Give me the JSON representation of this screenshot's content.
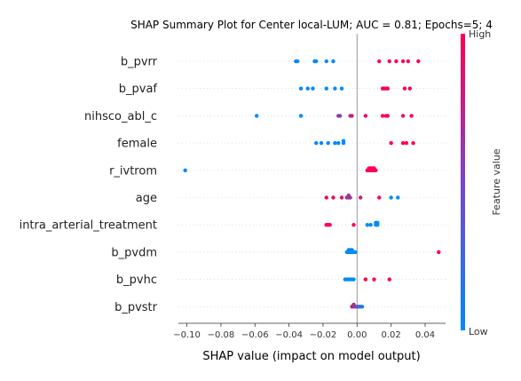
{
  "chart_data": {
    "type": "scatter",
    "title": "SHAP Summary Plot for Center local-LUM; AUC = 0.81; Epochs=5; 4",
    "xlabel": "SHAP value (impact on model output)",
    "xlim": [
      -0.105,
      0.052
    ],
    "xticks": [
      -0.1,
      -0.08,
      -0.06,
      -0.04,
      -0.02,
      0.0,
      0.02,
      0.04
    ],
    "xtick_labels": [
      "−0.10",
      "−0.08",
      "−0.06",
      "−0.04",
      "−0.02",
      "0.00",
      "0.02",
      "0.04"
    ],
    "grid": false,
    "colorbar": {
      "label": "Feature value",
      "high_label": "High",
      "low_label": "Low",
      "low_color": "#008afb",
      "high_color": "#ff0052"
    },
    "features": [
      {
        "name": "b_pvrr",
        "points": [
          {
            "x": -0.036,
            "v": 0.0
          },
          {
            "x": -0.035,
            "v": 0.0
          },
          {
            "x": -0.025,
            "v": 0.0
          },
          {
            "x": -0.024,
            "v": 0.0
          },
          {
            "x": -0.018,
            "v": 0.0
          },
          {
            "x": -0.014,
            "v": 0.0
          },
          {
            "x": 0.013,
            "v": 1.0
          },
          {
            "x": 0.019,
            "v": 1.0
          },
          {
            "x": 0.023,
            "v": 1.0
          },
          {
            "x": 0.027,
            "v": 1.0
          },
          {
            "x": 0.03,
            "v": 1.0
          },
          {
            "x": 0.036,
            "v": 1.0
          }
        ]
      },
      {
        "name": "b_pvaf",
        "points": [
          {
            "x": -0.033,
            "v": 0.0
          },
          {
            "x": -0.029,
            "v": 0.0
          },
          {
            "x": -0.026,
            "v": 0.0
          },
          {
            "x": -0.018,
            "v": 0.0
          },
          {
            "x": -0.013,
            "v": 0.0
          },
          {
            "x": -0.009,
            "v": 0.0
          },
          {
            "x": 0.015,
            "v": 1.0
          },
          {
            "x": 0.016,
            "v": 1.0
          },
          {
            "x": 0.017,
            "v": 1.0
          },
          {
            "x": 0.018,
            "v": 1.0
          },
          {
            "x": 0.028,
            "v": 1.0
          },
          {
            "x": 0.031,
            "v": 1.0
          }
        ]
      },
      {
        "name": "nihsco_abl_c",
        "points": [
          {
            "x": -0.059,
            "v": 0.0
          },
          {
            "x": -0.033,
            "v": 0.0
          },
          {
            "x": -0.011,
            "v": 0.55
          },
          {
            "x": -0.01,
            "v": 0.5
          },
          {
            "x": -0.004,
            "v": 0.7
          },
          {
            "x": -0.003,
            "v": 0.75
          },
          {
            "x": 0.005,
            "v": 0.9
          },
          {
            "x": 0.015,
            "v": 1.0
          },
          {
            "x": 0.017,
            "v": 1.0
          },
          {
            "x": 0.018,
            "v": 1.0
          },
          {
            "x": 0.027,
            "v": 1.0
          },
          {
            "x": 0.032,
            "v": 1.0
          }
        ]
      },
      {
        "name": "female",
        "points": [
          {
            "x": -0.024,
            "v": 0.0
          },
          {
            "x": -0.021,
            "v": 0.0
          },
          {
            "x": -0.017,
            "v": 0.0
          },
          {
            "x": -0.013,
            "v": 0.0
          },
          {
            "x": -0.011,
            "v": 0.0
          },
          {
            "x": -0.008,
            "v": 0.0
          },
          {
            "x": -0.008,
            "v": 0.0
          },
          {
            "x": 0.02,
            "v": 1.0
          },
          {
            "x": 0.027,
            "v": 1.0
          },
          {
            "x": 0.029,
            "v": 1.0
          },
          {
            "x": 0.033,
            "v": 1.0
          }
        ]
      },
      {
        "name": "r_ivtrom",
        "points": [
          {
            "x": -0.101,
            "v": 0.0
          },
          {
            "x": 0.006,
            "v": 1.0
          },
          {
            "x": 0.007,
            "v": 1.0
          },
          {
            "x": 0.008,
            "v": 1.0
          },
          {
            "x": 0.009,
            "v": 1.0
          },
          {
            "x": 0.01,
            "v": 1.0
          },
          {
            "x": 0.011,
            "v": 1.0
          },
          {
            "x": 0.007,
            "v": 1.0
          },
          {
            "x": 0.009,
            "v": 1.0
          },
          {
            "x": 0.01,
            "v": 1.0
          },
          {
            "x": 0.008,
            "v": 1.0
          }
        ]
      },
      {
        "name": "age",
        "points": [
          {
            "x": -0.018,
            "v": 0.95
          },
          {
            "x": -0.014,
            "v": 0.9
          },
          {
            "x": -0.009,
            "v": 0.85
          },
          {
            "x": -0.006,
            "v": 0.7
          },
          {
            "x": -0.005,
            "v": 0.6
          },
          {
            "x": -0.004,
            "v": 0.55
          },
          {
            "x": -0.005,
            "v": 0.65
          },
          {
            "x": 0.002,
            "v": 0.8
          },
          {
            "x": 0.013,
            "v": 1.0
          },
          {
            "x": 0.02,
            "v": 0.0
          },
          {
            "x": 0.024,
            "v": 0.0
          }
        ]
      },
      {
        "name": "intra_arterial_treatment",
        "points": [
          {
            "x": -0.018,
            "v": 1.0
          },
          {
            "x": -0.017,
            "v": 1.0
          },
          {
            "x": -0.016,
            "v": 1.0
          },
          {
            "x": -0.002,
            "v": 1.0
          },
          {
            "x": 0.006,
            "v": 0.0
          },
          {
            "x": 0.008,
            "v": 0.0
          },
          {
            "x": 0.011,
            "v": 0.0
          },
          {
            "x": 0.012,
            "v": 0.0
          },
          {
            "x": 0.011,
            "v": 0.0
          },
          {
            "x": 0.012,
            "v": 0.0
          }
        ]
      },
      {
        "name": "b_pvdm",
        "points": [
          {
            "x": -0.006,
            "v": 0.0
          },
          {
            "x": -0.005,
            "v": 0.0
          },
          {
            "x": -0.004,
            "v": 0.0
          },
          {
            "x": -0.003,
            "v": 0.0
          },
          {
            "x": -0.002,
            "v": 0.0
          },
          {
            "x": -0.001,
            "v": 0.0
          },
          {
            "x": -0.005,
            "v": 0.0
          },
          {
            "x": -0.004,
            "v": 0.0
          },
          {
            "x": -0.003,
            "v": 0.05
          },
          {
            "x": 0.048,
            "v": 1.0
          }
        ]
      },
      {
        "name": "b_pvhc",
        "points": [
          {
            "x": -0.007,
            "v": 0.0
          },
          {
            "x": -0.006,
            "v": 0.0
          },
          {
            "x": -0.005,
            "v": 0.0
          },
          {
            "x": -0.004,
            "v": 0.0
          },
          {
            "x": -0.003,
            "v": 0.0
          },
          {
            "x": -0.002,
            "v": 0.0
          },
          {
            "x": 0.005,
            "v": 1.0
          },
          {
            "x": 0.01,
            "v": 1.0
          },
          {
            "x": 0.019,
            "v": 1.0
          }
        ]
      },
      {
        "name": "b_pvstr",
        "points": [
          {
            "x": -0.003,
            "v": 0.8
          },
          {
            "x": -0.002,
            "v": 0.7
          },
          {
            "x": -0.001,
            "v": 0.5
          },
          {
            "x": 0.0,
            "v": 0.4
          },
          {
            "x": 0.001,
            "v": 0.3
          },
          {
            "x": 0.002,
            "v": 0.2
          },
          {
            "x": 0.003,
            "v": 0.1
          },
          {
            "x": -0.002,
            "v": 0.6
          }
        ]
      }
    ]
  }
}
